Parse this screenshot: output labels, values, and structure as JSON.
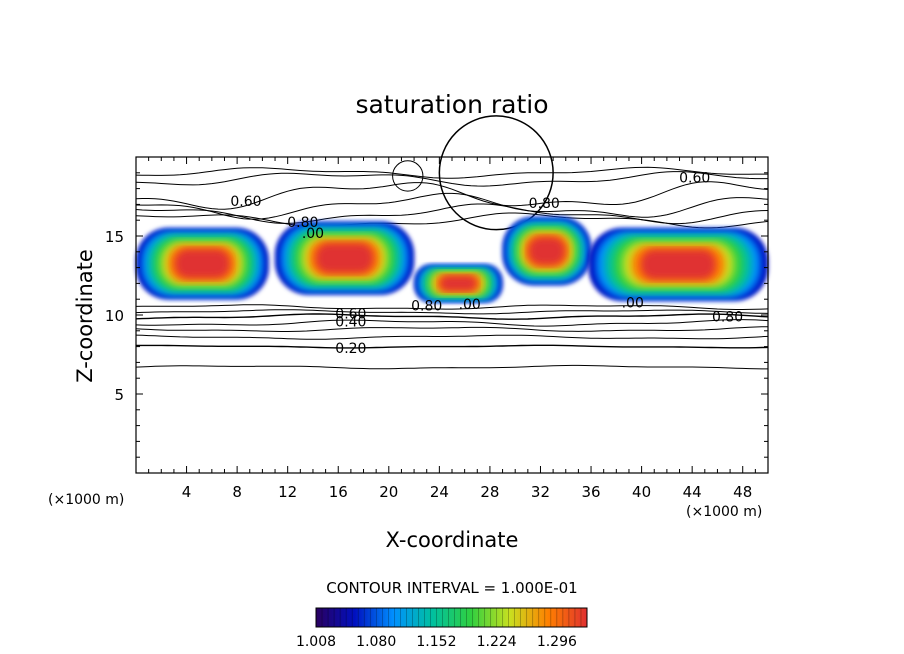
{
  "chart_data": {
    "type": "heatmap",
    "title": "saturation ratio",
    "xlabel": "X-coordinate",
    "ylabel": "Z-coordinate",
    "x_unit": "(×1000 m)",
    "z_unit": "(×1000 m)",
    "xlim": [
      0,
      50
    ],
    "ylim": [
      0,
      20
    ],
    "x_ticks": [
      4,
      8,
      12,
      16,
      20,
      24,
      28,
      32,
      36,
      40,
      44,
      48
    ],
    "y_ticks": [
      5,
      10,
      15
    ],
    "contour_interval_text": "CONTOUR INTERVAL = 1.000E-01",
    "contour_labels": [
      {
        "text": "0.60",
        "x": 8.7,
        "z": 17.2
      },
      {
        "text": "0.60",
        "x": 44.2,
        "z": 18.7
      },
      {
        "text": "0.80",
        "x": 13.2,
        "z": 15.9
      },
      {
        "text": "0.80",
        "x": 32.3,
        "z": 17.1
      },
      {
        "text": ".00",
        "x": 14.0,
        "z": 15.2
      },
      {
        "text": "0.80",
        "x": 23.0,
        "z": 10.6
      },
      {
        "text": ".00",
        "x": 26.4,
        "z": 10.7
      },
      {
        "text": ".00",
        "x": 39.3,
        "z": 10.8
      },
      {
        "text": "0.80",
        "x": 46.8,
        "z": 9.9
      },
      {
        "text": "0.60",
        "x": 17.0,
        "z": 10.1
      },
      {
        "text": "0.40",
        "x": 17.0,
        "z": 9.6
      },
      {
        "text": "0.20",
        "x": 17.0,
        "z": 7.9
      }
    ],
    "colorbar": {
      "min": 1.008,
      "max": 1.332,
      "tick_labels": [
        "1.008",
        "1.080",
        "1.152",
        "1.224",
        "1.296"
      ],
      "colors": [
        "#2a0060",
        "#0010c0",
        "#0090ff",
        "#00c0a0",
        "#30d040",
        "#c8e020",
        "#ff8000",
        "#e03030"
      ]
    },
    "regions": [
      {
        "x": [
          0,
          10.5
        ],
        "z": [
          11.0,
          15.5
        ],
        "level": "saturated"
      },
      {
        "x": [
          11.0,
          22.0
        ],
        "z": [
          11.3,
          15.9
        ],
        "level": "saturated"
      },
      {
        "x": [
          22.0,
          29.0
        ],
        "z": [
          10.8,
          13.2
        ],
        "level": "saturated"
      },
      {
        "x": [
          29.0,
          36.0
        ],
        "z": [
          11.9,
          16.2
        ],
        "level": "saturated"
      },
      {
        "x": [
          35.8,
          50.0
        ],
        "z": [
          10.9,
          15.5
        ],
        "level": "saturated"
      }
    ],
    "grid": false
  }
}
